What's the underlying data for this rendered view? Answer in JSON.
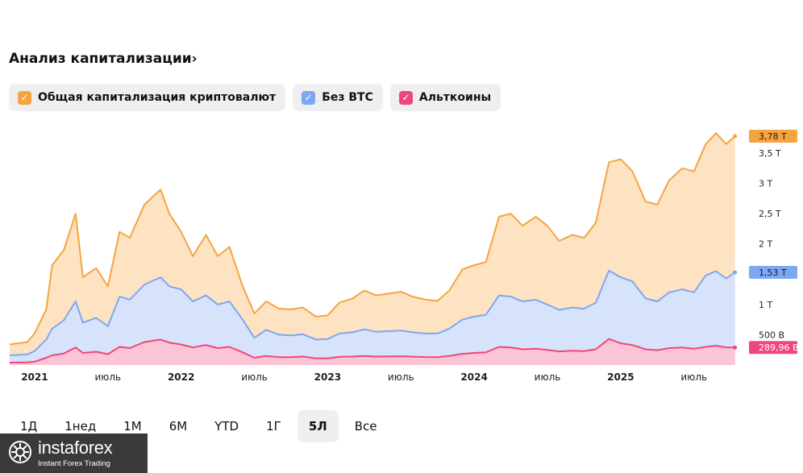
{
  "header": {
    "title": "Анализ капитализации›"
  },
  "legend": [
    {
      "label": "Общая капитализация криптовалют",
      "color": "#f5a442",
      "check": "✓"
    },
    {
      "label": "Без BTC",
      "color": "#7ea7f2",
      "check": "✓"
    },
    {
      "label": "Альткоины",
      "color": "#f0467e",
      "check": "✓"
    }
  ],
  "periods": {
    "items": [
      "1Д",
      "1нед",
      "1М",
      "6М",
      "YTD",
      "1Г",
      "5Л",
      "Все"
    ],
    "active": "5Л"
  },
  "chart_data": {
    "type": "area",
    "x_ticks": [
      "2021",
      "июль",
      "2022",
      "июль",
      "2023",
      "июль",
      "2024",
      "июль",
      "2025",
      "июль"
    ],
    "y_ticks": [
      "500 B",
      "1 T",
      "1,5 T",
      "2 T",
      "2,5 T",
      "3 T",
      "3,5 T"
    ],
    "y_tick_values": [
      500,
      1000,
      1500,
      2000,
      2500,
      3000,
      3500
    ],
    "y_unit": "B (billion USD)",
    "ylim": [
      0,
      3900
    ],
    "x_start": "2020.83",
    "x_end": "2025.87",
    "series": [
      {
        "name": "Общая капитализация криптовалют",
        "color": "#f5a442",
        "last_label": "3,78 T",
        "points": [
          [
            2020.83,
            340
          ],
          [
            2020.95,
            380
          ],
          [
            2021.0,
            520
          ],
          [
            2021.08,
            920
          ],
          [
            2021.12,
            1650
          ],
          [
            2021.2,
            1900
          ],
          [
            2021.28,
            2500
          ],
          [
            2021.33,
            1450
          ],
          [
            2021.42,
            1600
          ],
          [
            2021.5,
            1300
          ],
          [
            2021.58,
            2200
          ],
          [
            2021.65,
            2100
          ],
          [
            2021.75,
            2650
          ],
          [
            2021.86,
            2900
          ],
          [
            2021.92,
            2500
          ],
          [
            2022.0,
            2200
          ],
          [
            2022.08,
            1800
          ],
          [
            2022.17,
            2150
          ],
          [
            2022.25,
            1800
          ],
          [
            2022.33,
            1950
          ],
          [
            2022.42,
            1300
          ],
          [
            2022.5,
            850
          ],
          [
            2022.58,
            1050
          ],
          [
            2022.67,
            930
          ],
          [
            2022.75,
            920
          ],
          [
            2022.83,
            950
          ],
          [
            2022.92,
            800
          ],
          [
            2023.0,
            820
          ],
          [
            2023.08,
            1030
          ],
          [
            2023.17,
            1100
          ],
          [
            2023.25,
            1230
          ],
          [
            2023.33,
            1150
          ],
          [
            2023.5,
            1210
          ],
          [
            2023.58,
            1130
          ],
          [
            2023.67,
            1080
          ],
          [
            2023.75,
            1060
          ],
          [
            2023.83,
            1230
          ],
          [
            2023.92,
            1580
          ],
          [
            2024.0,
            1650
          ],
          [
            2024.08,
            1700
          ],
          [
            2024.17,
            2450
          ],
          [
            2024.25,
            2500
          ],
          [
            2024.33,
            2300
          ],
          [
            2024.42,
            2450
          ],
          [
            2024.5,
            2300
          ],
          [
            2024.58,
            2050
          ],
          [
            2024.67,
            2150
          ],
          [
            2024.75,
            2100
          ],
          [
            2024.83,
            2350
          ],
          [
            2024.92,
            3350
          ],
          [
            2025.0,
            3400
          ],
          [
            2025.08,
            3200
          ],
          [
            2025.17,
            2700
          ],
          [
            2025.25,
            2650
          ],
          [
            2025.33,
            3050
          ],
          [
            2025.42,
            3250
          ],
          [
            2025.5,
            3200
          ],
          [
            2025.58,
            3650
          ],
          [
            2025.65,
            3830
          ],
          [
            2025.72,
            3650
          ],
          [
            2025.78,
            3780
          ]
        ]
      },
      {
        "name": "Без BTC",
        "color": "#7ea7f2",
        "last_label": "1,53 T",
        "points": [
          [
            2020.83,
            160
          ],
          [
            2020.95,
            175
          ],
          [
            2021.0,
            230
          ],
          [
            2021.08,
            420
          ],
          [
            2021.12,
            600
          ],
          [
            2021.2,
            740
          ],
          [
            2021.28,
            1050
          ],
          [
            2021.33,
            700
          ],
          [
            2021.42,
            780
          ],
          [
            2021.5,
            640
          ],
          [
            2021.58,
            1130
          ],
          [
            2021.65,
            1080
          ],
          [
            2021.75,
            1330
          ],
          [
            2021.86,
            1450
          ],
          [
            2021.92,
            1300
          ],
          [
            2022.0,
            1250
          ],
          [
            2022.08,
            1050
          ],
          [
            2022.17,
            1150
          ],
          [
            2022.25,
            1000
          ],
          [
            2022.33,
            1050
          ],
          [
            2022.42,
            750
          ],
          [
            2022.5,
            450
          ],
          [
            2022.58,
            580
          ],
          [
            2022.67,
            500
          ],
          [
            2022.75,
            490
          ],
          [
            2022.83,
            510
          ],
          [
            2022.92,
            420
          ],
          [
            2023.0,
            430
          ],
          [
            2023.08,
            520
          ],
          [
            2023.17,
            540
          ],
          [
            2023.25,
            590
          ],
          [
            2023.33,
            550
          ],
          [
            2023.5,
            570
          ],
          [
            2023.58,
            540
          ],
          [
            2023.67,
            520
          ],
          [
            2023.75,
            520
          ],
          [
            2023.83,
            600
          ],
          [
            2023.92,
            750
          ],
          [
            2024.0,
            800
          ],
          [
            2024.08,
            830
          ],
          [
            2024.17,
            1150
          ],
          [
            2024.25,
            1130
          ],
          [
            2024.33,
            1050
          ],
          [
            2024.42,
            1080
          ],
          [
            2024.5,
            1000
          ],
          [
            2024.58,
            910
          ],
          [
            2024.67,
            950
          ],
          [
            2024.75,
            930
          ],
          [
            2024.83,
            1030
          ],
          [
            2024.92,
            1560
          ],
          [
            2025.0,
            1450
          ],
          [
            2025.08,
            1380
          ],
          [
            2025.17,
            1100
          ],
          [
            2025.25,
            1050
          ],
          [
            2025.33,
            1200
          ],
          [
            2025.42,
            1250
          ],
          [
            2025.5,
            1200
          ],
          [
            2025.58,
            1480
          ],
          [
            2025.65,
            1550
          ],
          [
            2025.72,
            1430
          ],
          [
            2025.78,
            1530
          ]
        ]
      },
      {
        "name": "Альткоины",
        "color": "#f0467e",
        "last_label": "289,96 B",
        "points": [
          [
            2020.83,
            40
          ],
          [
            2020.95,
            45
          ],
          [
            2021.0,
            55
          ],
          [
            2021.08,
            120
          ],
          [
            2021.12,
            160
          ],
          [
            2021.2,
            190
          ],
          [
            2021.28,
            290
          ],
          [
            2021.33,
            200
          ],
          [
            2021.42,
            220
          ],
          [
            2021.5,
            180
          ],
          [
            2021.58,
            300
          ],
          [
            2021.65,
            280
          ],
          [
            2021.75,
            380
          ],
          [
            2021.86,
            420
          ],
          [
            2021.92,
            370
          ],
          [
            2022.0,
            340
          ],
          [
            2022.08,
            290
          ],
          [
            2022.17,
            330
          ],
          [
            2022.25,
            280
          ],
          [
            2022.33,
            300
          ],
          [
            2022.42,
            210
          ],
          [
            2022.5,
            120
          ],
          [
            2022.58,
            150
          ],
          [
            2022.67,
            130
          ],
          [
            2022.75,
            130
          ],
          [
            2022.83,
            140
          ],
          [
            2022.92,
            110
          ],
          [
            2023.0,
            110
          ],
          [
            2023.08,
            135
          ],
          [
            2023.17,
            140
          ],
          [
            2023.25,
            150
          ],
          [
            2023.33,
            140
          ],
          [
            2023.5,
            145
          ],
          [
            2023.58,
            138
          ],
          [
            2023.67,
            132
          ],
          [
            2023.75,
            130
          ],
          [
            2023.83,
            150
          ],
          [
            2023.92,
            185
          ],
          [
            2024.0,
            200
          ],
          [
            2024.08,
            210
          ],
          [
            2024.17,
            300
          ],
          [
            2024.25,
            290
          ],
          [
            2024.33,
            260
          ],
          [
            2024.42,
            270
          ],
          [
            2024.5,
            250
          ],
          [
            2024.58,
            225
          ],
          [
            2024.67,
            235
          ],
          [
            2024.75,
            230
          ],
          [
            2024.83,
            260
          ],
          [
            2024.92,
            430
          ],
          [
            2025.0,
            360
          ],
          [
            2025.08,
            330
          ],
          [
            2025.17,
            260
          ],
          [
            2025.25,
            245
          ],
          [
            2025.33,
            280
          ],
          [
            2025.42,
            290
          ],
          [
            2025.5,
            270
          ],
          [
            2025.58,
            300
          ],
          [
            2025.65,
            320
          ],
          [
            2025.72,
            290
          ],
          [
            2025.78,
            290
          ]
        ]
      }
    ]
  },
  "brand": {
    "name": "instaforex",
    "sub": "Instant Forex Trading"
  }
}
